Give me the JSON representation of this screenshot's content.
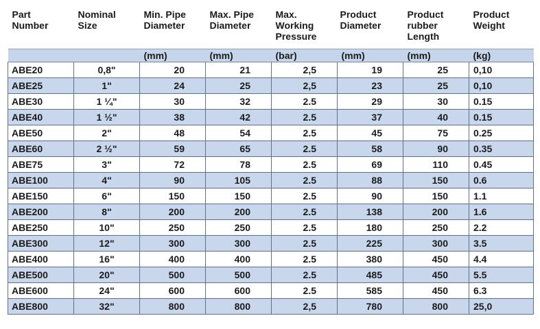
{
  "table": {
    "headers": [
      "Part\nNumber",
      "Nominal\nSize",
      "Min. Pipe\nDiameter",
      "Max. Pipe\nDiameter",
      "Max.\nWorking\nPressure",
      "Product\nDiameter",
      "Product\nrubber\nLength",
      "Product\nWeight"
    ],
    "units": [
      "",
      "",
      "(mm)",
      "(mm)",
      "(bar)",
      "(mm)",
      "(mm)",
      "(kg)"
    ],
    "rows": [
      [
        "ABE20",
        "0,8\"",
        "20",
        "21",
        "2,5",
        "19",
        "25",
        "0,10"
      ],
      [
        "ABE25",
        "1\"",
        "24",
        "25",
        "2,5",
        "23",
        "25",
        "0,10"
      ],
      [
        "ABE30",
        "1 ¼\"",
        "30",
        "32",
        "2.5",
        "29",
        "30",
        "0.15"
      ],
      [
        "ABE40",
        "1 ½\"",
        "38",
        "42",
        "2.5",
        "37",
        "40",
        "0.15"
      ],
      [
        "ABE50",
        "2\"",
        "48",
        "54",
        "2.5",
        "45",
        "75",
        "0.25"
      ],
      [
        "ABE60",
        "2 ½\"",
        "59",
        "65",
        "2.5",
        "58",
        "90",
        "0.35"
      ],
      [
        "ABE75",
        "3\"",
        "72",
        "78",
        "2.5",
        "69",
        "110",
        "0.45"
      ],
      [
        "ABE100",
        "4\"",
        "90",
        "105",
        "2.5",
        "88",
        "150",
        "0.6"
      ],
      [
        "ABE150",
        "6\"",
        "150",
        "150",
        "2.5",
        "90",
        "150",
        "1.1"
      ],
      [
        "ABE200",
        "8\"",
        "200",
        "200",
        "2.5",
        "138",
        "200",
        "1.6"
      ],
      [
        "ABE250",
        "10\"",
        "250",
        "250",
        "2.5",
        "180",
        "250",
        "2.2"
      ],
      [
        "ABE300",
        "12\"",
        "300",
        "300",
        "2.5",
        "225",
        "300",
        "3.5"
      ],
      [
        "ABE400",
        "16\"",
        "400",
        "400",
        "2.5",
        "380",
        "450",
        "4.4"
      ],
      [
        "ABE500",
        "20\"",
        "500",
        "500",
        "2.5",
        "485",
        "450",
        "5.5"
      ],
      [
        "ABE600",
        "24\"",
        "600",
        "600",
        "2.5",
        "585",
        "450",
        "6.3"
      ],
      [
        "ABE800",
        "32\"",
        "800",
        "800",
        "2,5",
        "780",
        "800",
        "25,0"
      ]
    ]
  }
}
